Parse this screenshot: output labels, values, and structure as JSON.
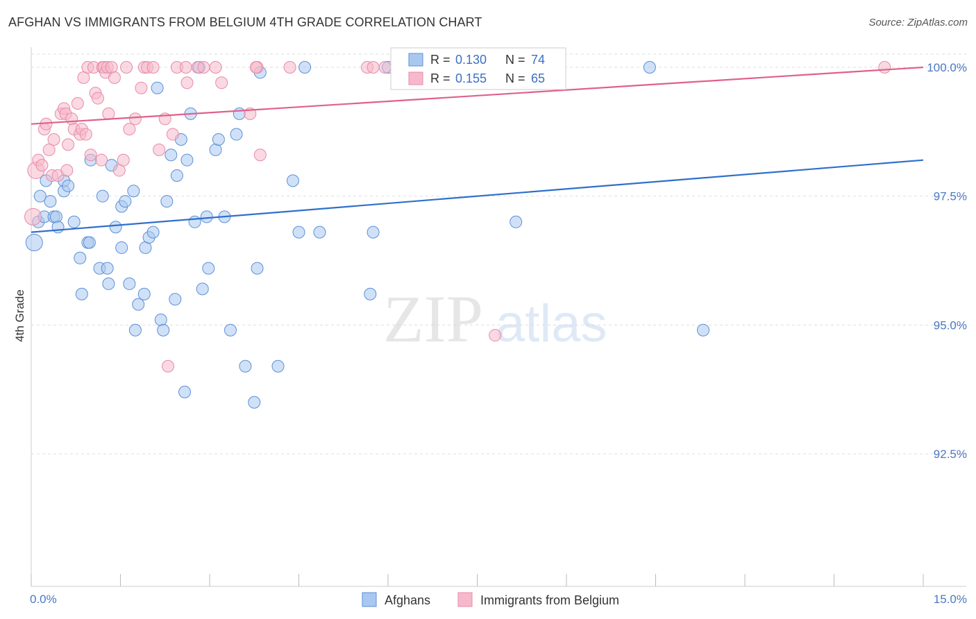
{
  "header": {
    "title": "AFGHAN VS IMMIGRANTS FROM BELGIUM 4TH GRADE CORRELATION CHART",
    "source": "Source: ZipAtlas.com"
  },
  "watermark": {
    "zip": "ZIP",
    "atlas": "atlas"
  },
  "colors": {
    "blue_fill": "#a9c8f0",
    "blue_stroke": "#5b8fd6",
    "blue_line": "#2f6fca",
    "pink_fill": "#f5b9cb",
    "pink_stroke": "#e88aa8",
    "pink_line": "#e0608a",
    "tick_text": "#4a78c2",
    "grid": "#dddddd"
  },
  "chart_data": {
    "type": "scatter",
    "title": "AFGHAN VS IMMIGRANTS FROM BELGIUM 4TH GRADE CORRELATION CHART",
    "xlabel": "",
    "ylabel": "4th Grade",
    "xlim": [
      0,
      15
    ],
    "ylim": [
      90.0,
      100.4
    ],
    "x_tick_labels": [
      {
        "value": 0,
        "label": "0.0%"
      },
      {
        "value": 15,
        "label": "15.0%"
      }
    ],
    "y_tick_labels": [
      {
        "value": 100.0,
        "label": "100.0%"
      },
      {
        "value": 97.5,
        "label": "97.5%"
      },
      {
        "value": 95.0,
        "label": "95.0%"
      },
      {
        "value": 92.5,
        "label": "92.5%"
      }
    ],
    "series": [
      {
        "name": "Afghans",
        "R": "0.130",
        "N": "74",
        "trend": {
          "x": [
            0,
            15
          ],
          "y": [
            96.8,
            98.2
          ]
        },
        "points": [
          [
            0.05,
            96.6
          ],
          [
            0.12,
            97.0
          ],
          [
            0.22,
            97.1
          ],
          [
            0.25,
            97.8
          ],
          [
            0.32,
            97.4
          ],
          [
            0.38,
            97.1
          ],
          [
            0.42,
            97.1
          ],
          [
            0.55,
            97.6
          ],
          [
            0.55,
            97.8
          ],
          [
            0.62,
            97.7
          ],
          [
            0.72,
            97.0
          ],
          [
            0.82,
            96.3
          ],
          [
            0.85,
            95.6
          ],
          [
            0.95,
            96.6
          ],
          [
            0.98,
            96.6
          ],
          [
            1.0,
            98.2
          ],
          [
            1.15,
            96.1
          ],
          [
            1.2,
            97.5
          ],
          [
            1.28,
            96.1
          ],
          [
            1.3,
            95.8
          ],
          [
            1.35,
            98.1
          ],
          [
            1.42,
            96.9
          ],
          [
            1.52,
            97.3
          ],
          [
            1.52,
            96.5
          ],
          [
            1.58,
            97.4
          ],
          [
            1.65,
            95.8
          ],
          [
            1.72,
            97.6
          ],
          [
            1.75,
            94.9
          ],
          [
            1.8,
            95.4
          ],
          [
            1.9,
            95.6
          ],
          [
            1.92,
            96.5
          ],
          [
            1.98,
            96.7
          ],
          [
            2.05,
            96.8
          ],
          [
            2.12,
            99.6
          ],
          [
            2.18,
            95.1
          ],
          [
            2.22,
            94.9
          ],
          [
            2.28,
            97.4
          ],
          [
            2.35,
            98.3
          ],
          [
            2.42,
            95.5
          ],
          [
            2.45,
            97.9
          ],
          [
            2.52,
            98.6
          ],
          [
            2.58,
            93.7
          ],
          [
            2.62,
            98.2
          ],
          [
            2.68,
            99.1
          ],
          [
            2.75,
            97.0
          ],
          [
            2.82,
            100.0
          ],
          [
            2.88,
            95.7
          ],
          [
            2.95,
            97.1
          ],
          [
            2.98,
            96.1
          ],
          [
            3.1,
            98.4
          ],
          [
            3.15,
            98.6
          ],
          [
            3.25,
            97.1
          ],
          [
            3.35,
            94.9
          ],
          [
            3.45,
            98.7
          ],
          [
            3.5,
            99.1
          ],
          [
            3.6,
            94.2
          ],
          [
            3.75,
            93.5
          ],
          [
            3.8,
            96.1
          ],
          [
            3.85,
            99.9
          ],
          [
            4.15,
            94.2
          ],
          [
            4.4,
            97.8
          ],
          [
            4.5,
            96.8
          ],
          [
            4.6,
            100.0
          ],
          [
            4.85,
            96.8
          ],
          [
            5.7,
            95.6
          ],
          [
            5.75,
            96.8
          ],
          [
            6.0,
            100.0
          ],
          [
            6.15,
            100.0
          ],
          [
            8.15,
            97.0
          ],
          [
            8.8,
            100.0
          ],
          [
            10.4,
            100.0
          ],
          [
            11.3,
            94.9
          ],
          [
            0.15,
            97.5
          ],
          [
            0.45,
            96.9
          ]
        ]
      },
      {
        "name": "Immigrants from Belgium",
        "R": "0.155",
        "N": "65",
        "trend": {
          "x": [
            0,
            15
          ],
          "y": [
            98.9,
            100.0
          ]
        },
        "points": [
          [
            0.03,
            97.1
          ],
          [
            0.08,
            98.0
          ],
          [
            0.12,
            98.2
          ],
          [
            0.18,
            98.1
          ],
          [
            0.22,
            98.8
          ],
          [
            0.25,
            98.9
          ],
          [
            0.3,
            98.4
          ],
          [
            0.35,
            97.9
          ],
          [
            0.38,
            98.6
          ],
          [
            0.45,
            97.9
          ],
          [
            0.5,
            99.1
          ],
          [
            0.55,
            99.2
          ],
          [
            0.58,
            99.1
          ],
          [
            0.6,
            98.0
          ],
          [
            0.62,
            98.5
          ],
          [
            0.68,
            99.0
          ],
          [
            0.72,
            98.8
          ],
          [
            0.78,
            99.3
          ],
          [
            0.82,
            98.7
          ],
          [
            0.85,
            98.8
          ],
          [
            0.88,
            99.8
          ],
          [
            0.92,
            98.7
          ],
          [
            0.95,
            100.0
          ],
          [
            1.0,
            98.3
          ],
          [
            1.05,
            100.0
          ],
          [
            1.08,
            99.5
          ],
          [
            1.12,
            99.4
          ],
          [
            1.18,
            98.2
          ],
          [
            1.2,
            100.0
          ],
          [
            1.22,
            100.0
          ],
          [
            1.25,
            99.9
          ],
          [
            1.28,
            100.0
          ],
          [
            1.3,
            99.1
          ],
          [
            1.35,
            100.0
          ],
          [
            1.4,
            99.8
          ],
          [
            1.48,
            98.0
          ],
          [
            1.55,
            98.2
          ],
          [
            1.6,
            100.0
          ],
          [
            1.65,
            98.8
          ],
          [
            1.75,
            99.0
          ],
          [
            1.85,
            99.6
          ],
          [
            1.9,
            100.0
          ],
          [
            1.95,
            100.0
          ],
          [
            2.05,
            100.0
          ],
          [
            2.15,
            98.4
          ],
          [
            2.25,
            99.0
          ],
          [
            2.3,
            94.2
          ],
          [
            2.38,
            98.7
          ],
          [
            2.45,
            100.0
          ],
          [
            2.6,
            100.0
          ],
          [
            2.62,
            99.7
          ],
          [
            2.8,
            100.0
          ],
          [
            2.9,
            100.0
          ],
          [
            3.1,
            100.0
          ],
          [
            3.2,
            99.7
          ],
          [
            3.8,
            100.0
          ],
          [
            3.68,
            99.1
          ],
          [
            3.85,
            98.3
          ],
          [
            4.35,
            100.0
          ],
          [
            5.65,
            100.0
          ],
          [
            5.75,
            100.0
          ],
          [
            5.95,
            100.0
          ],
          [
            7.8,
            94.8
          ],
          [
            14.35,
            100.0
          ],
          [
            3.78,
            100.0
          ]
        ]
      }
    ],
    "legend": {
      "placement": "top-center",
      "r_label": "R = ",
      "n_label": "N = "
    }
  }
}
